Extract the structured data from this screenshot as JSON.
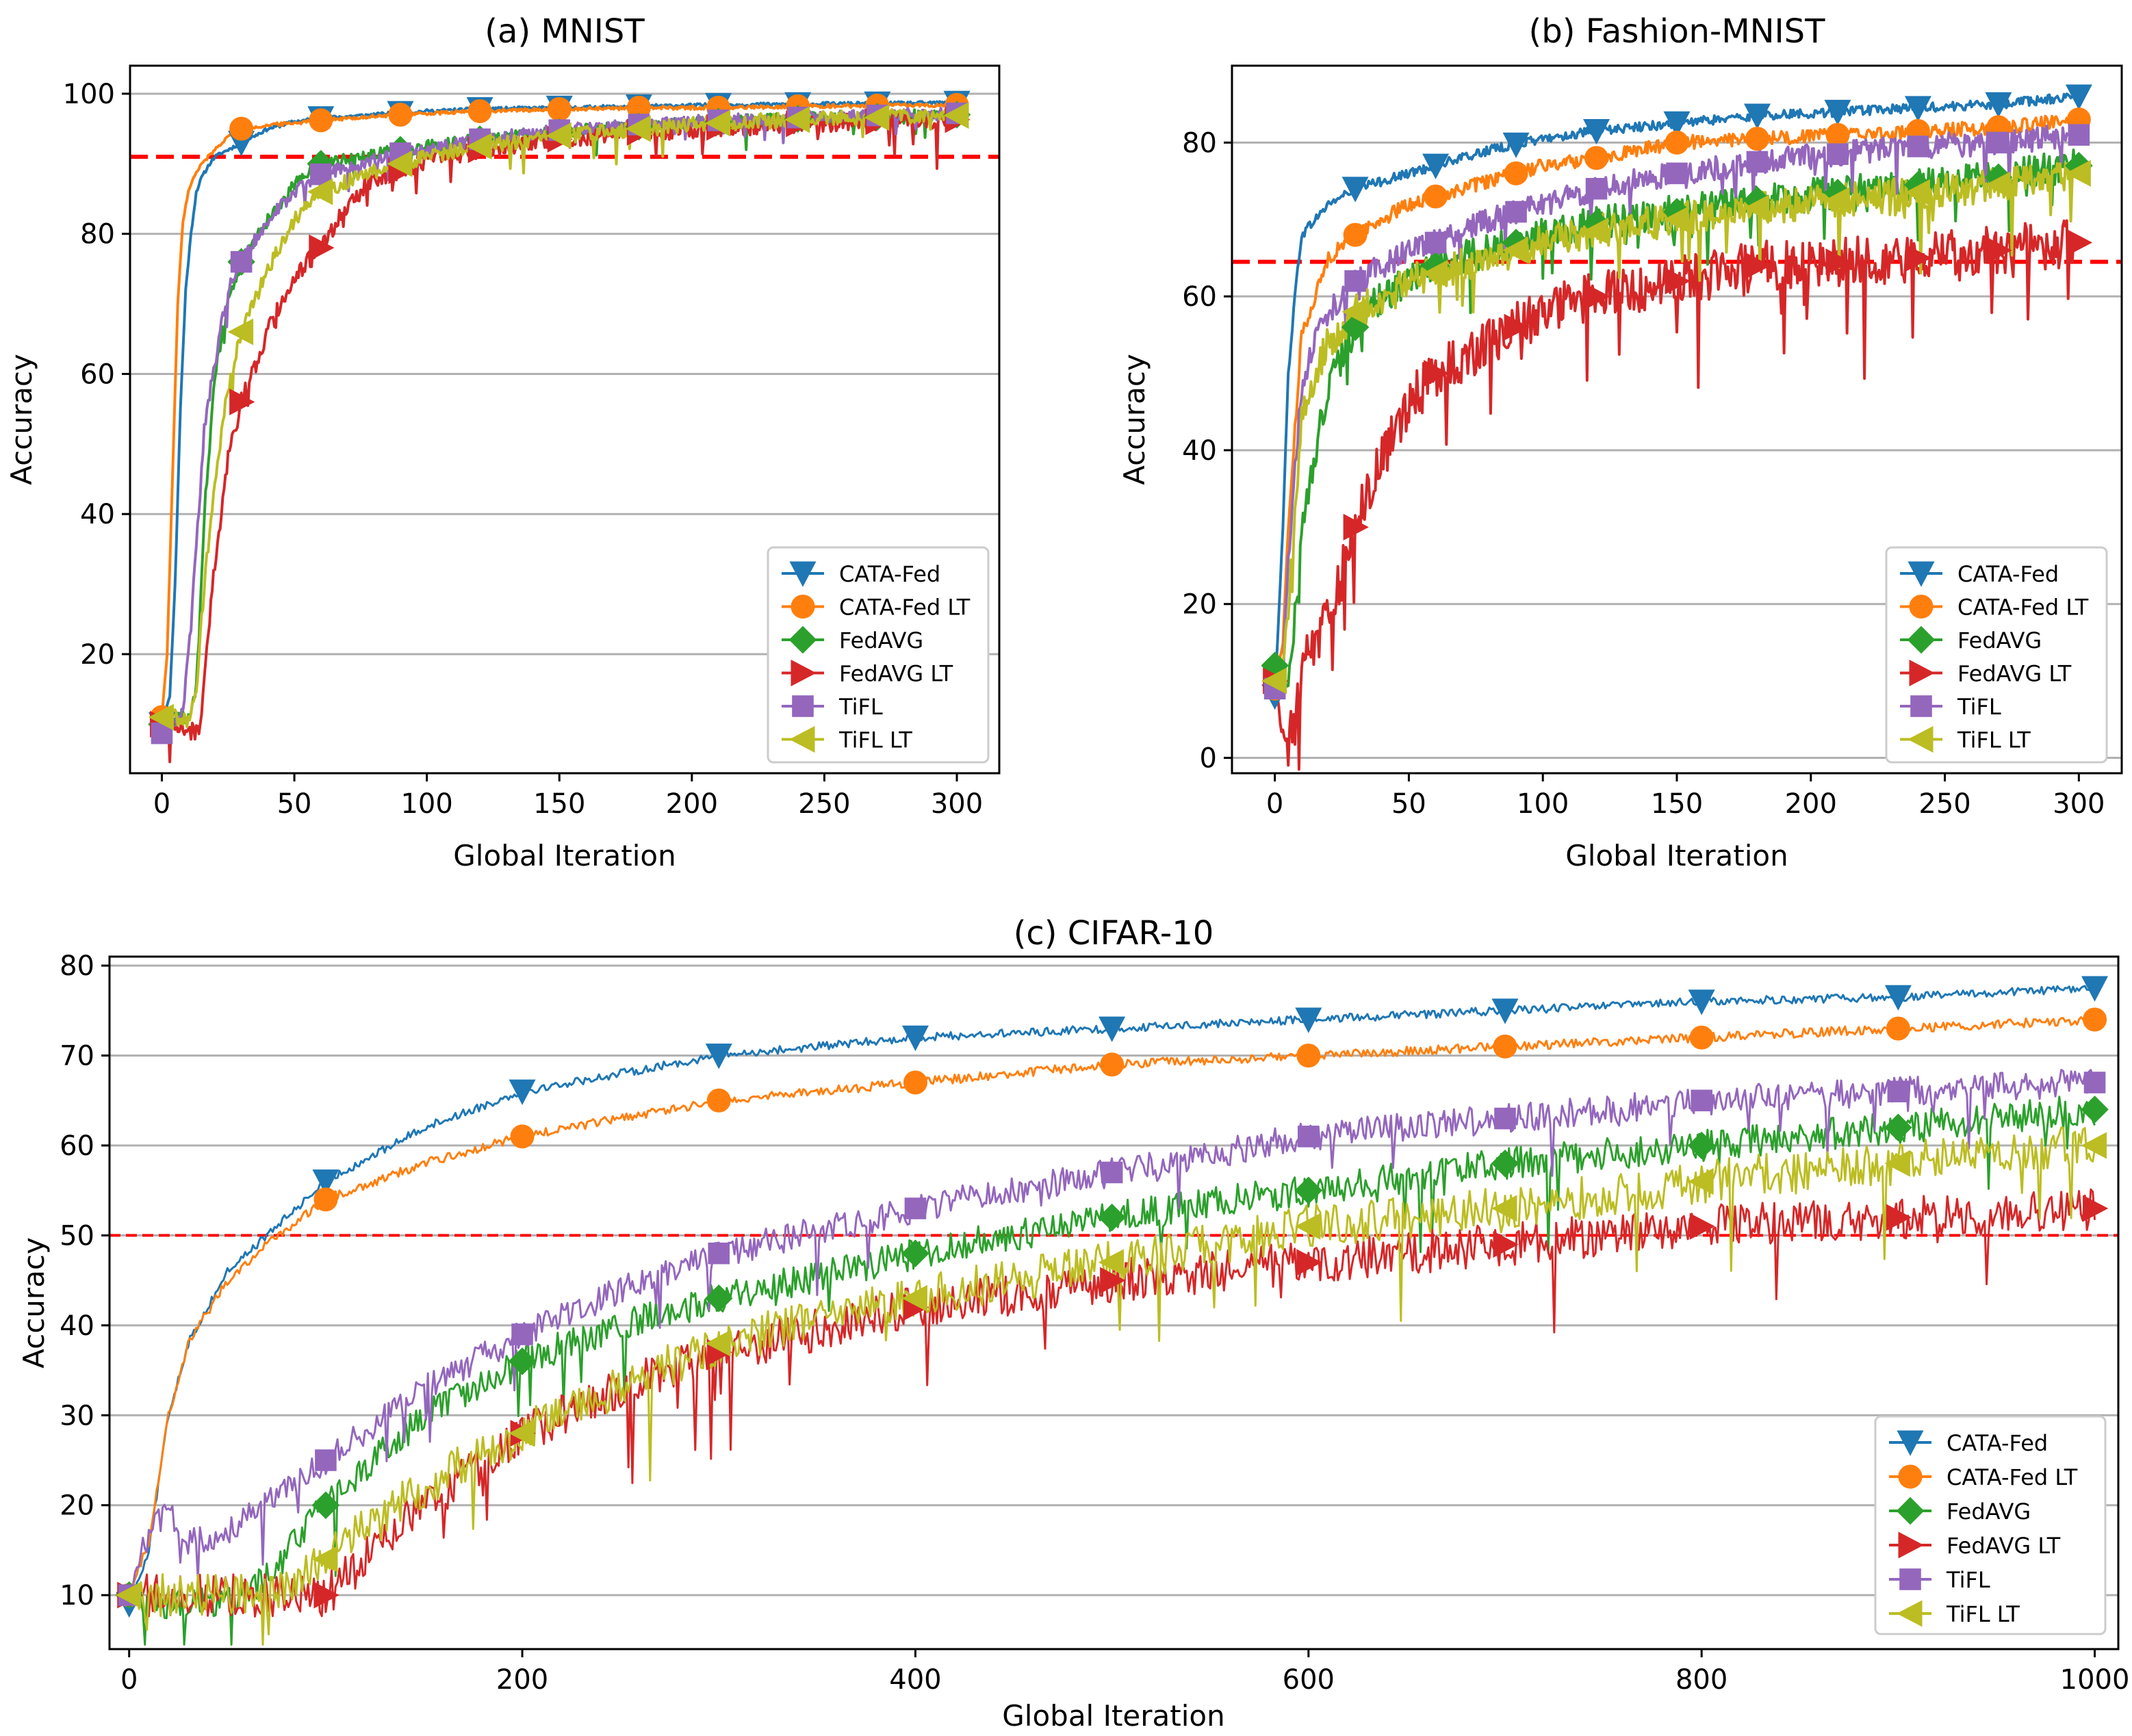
{
  "chart_data": [
    {
      "type": "line",
      "title": "(a) MNIST",
      "xlabel": "Global Iteration",
      "ylabel": "Accuracy",
      "xlim": [
        -12,
        316
      ],
      "ylim": [
        3,
        104
      ],
      "xticks": [
        0,
        50,
        100,
        150,
        200,
        250,
        300
      ],
      "yticks": [
        20,
        40,
        60,
        80,
        100
      ],
      "grid": "horizontal",
      "legend_position": "lower-right",
      "threshold": 91,
      "marker_every": 30,
      "series": [
        {
          "name": "CATA-Fed",
          "marker": "triangle-down",
          "color": "#1f77b4",
          "x": [
            0,
            3,
            5,
            7,
            9,
            11,
            13,
            15,
            18,
            20,
            25,
            30,
            40,
            50,
            60,
            80,
            100,
            120,
            150,
            180,
            210,
            240,
            270,
            300
          ],
          "values": [
            10,
            14,
            30,
            55,
            72,
            80,
            86,
            88,
            90,
            91,
            92,
            93,
            95,
            96,
            96.5,
            97,
            97.5,
            97.8,
            98,
            98.2,
            98.4,
            98.5,
            98.6,
            98.7
          ]
        },
        {
          "name": "CATA-Fed LT",
          "marker": "circle",
          "color": "#ff7f0e",
          "x": [
            0,
            2,
            4,
            6,
            8,
            10,
            12,
            15,
            20,
            25,
            30,
            40,
            60,
            90,
            120,
            150,
            180,
            210,
            240,
            270,
            300
          ],
          "values": [
            11,
            20,
            45,
            70,
            82,
            86,
            88,
            90,
            92,
            94,
            95,
            95.5,
            96.2,
            97,
            97.5,
            97.8,
            98,
            98,
            98.2,
            98.3,
            98.4
          ]
        },
        {
          "name": "FedAVG",
          "marker": "diamond",
          "color": "#2ca02c",
          "x": [
            0,
            5,
            10,
            13,
            16,
            20,
            25,
            30,
            40,
            50,
            60,
            75,
            90,
            120,
            150,
            180,
            210,
            240,
            270,
            300
          ],
          "values": [
            10,
            11,
            11,
            15,
            40,
            60,
            70,
            76,
            82,
            87,
            90,
            91,
            92,
            93.5,
            94.5,
            95.3,
            96,
            96.4,
            96.7,
            97
          ]
        },
        {
          "name": "FedAVG LT",
          "marker": "triangle-right",
          "color": "#d62728",
          "x": [
            0,
            5,
            10,
            14,
            17,
            20,
            25,
            30,
            40,
            50,
            60,
            70,
            80,
            90,
            100,
            120,
            150,
            180,
            210,
            240,
            270,
            300
          ],
          "values": [
            10,
            10,
            9,
            9,
            20,
            33,
            48,
            56,
            66,
            74,
            78,
            84,
            88,
            89,
            90.5,
            92,
            93.5,
            94.5,
            95.2,
            95.7,
            96,
            96.3
          ]
        },
        {
          "name": "TiFL",
          "marker": "square",
          "color": "#9467bd",
          "x": [
            0,
            5,
            8,
            10,
            13,
            16,
            20,
            25,
            30,
            40,
            50,
            60,
            80,
            90,
            120,
            150,
            180,
            210,
            240,
            270,
            300
          ],
          "values": [
            8.7,
            10,
            12,
            20,
            35,
            52,
            62,
            72,
            76,
            82,
            86,
            88.5,
            90.5,
            91.5,
            93.5,
            94.8,
            95.6,
            96.2,
            96.6,
            96.9,
            97.2
          ]
        },
        {
          "name": "TiFL LT",
          "marker": "triangle-left",
          "color": "#bcbd22",
          "x": [
            0,
            5,
            10,
            13,
            16,
            20,
            25,
            30,
            40,
            50,
            60,
            80,
            100,
            120,
            150,
            180,
            210,
            240,
            270,
            300
          ],
          "values": [
            11,
            11,
            10.5,
            14,
            30,
            45,
            58,
            66,
            75,
            82,
            86,
            89,
            91,
            92.5,
            94,
            95,
            95.8,
            96.3,
            96.6,
            96.9
          ]
        }
      ]
    },
    {
      "type": "line",
      "title": "(b) Fashion-MNIST",
      "xlabel": "Global Iteration",
      "ylabel": "Accuracy",
      "xlim": [
        -16,
        316
      ],
      "ylim": [
        -2,
        90
      ],
      "xticks": [
        0,
        50,
        100,
        150,
        200,
        250,
        300
      ],
      "yticks": [
        0,
        20,
        40,
        60,
        80
      ],
      "grid": "horizontal",
      "legend_position": "lower-right",
      "threshold": 64.5,
      "marker_every": 30,
      "series": [
        {
          "name": "CATA-Fed",
          "marker": "triangle-down",
          "color": "#1f77b4",
          "x": [
            0,
            3,
            5,
            8,
            10,
            15,
            20,
            30,
            40,
            50,
            60,
            80,
            100,
            120,
            150,
            180,
            210,
            240,
            270,
            300
          ],
          "values": [
            8,
            30,
            50,
            62,
            68,
            70,
            72,
            74,
            75,
            76,
            77,
            79,
            80.5,
            81.5,
            82.5,
            83.5,
            84,
            84.5,
            85,
            86
          ]
        },
        {
          "name": "CATA-Fed LT",
          "marker": "circle",
          "color": "#ff7f0e",
          "x": [
            0,
            3,
            5,
            8,
            10,
            15,
            20,
            30,
            40,
            50,
            60,
            80,
            100,
            120,
            150,
            180,
            210,
            240,
            270,
            300
          ],
          "values": [
            9,
            15,
            30,
            45,
            55,
            60,
            65,
            68,
            70,
            72,
            73,
            75,
            77,
            78,
            80,
            80.5,
            81,
            81.5,
            82,
            83
          ]
        },
        {
          "name": "FedAVG",
          "marker": "diamond",
          "color": "#2ca02c",
          "x": [
            0,
            3,
            5,
            8,
            10,
            15,
            20,
            30,
            40,
            50,
            60,
            80,
            100,
            120,
            150,
            180,
            210,
            240,
            270,
            300
          ],
          "values": [
            12,
            8,
            10,
            20,
            30,
            40,
            48,
            56,
            60,
            62,
            64,
            66,
            68,
            69.5,
            71,
            72.5,
            73.5,
            74.5,
            75.5,
            77
          ]
        },
        {
          "name": "FedAVG LT",
          "marker": "triangle-right",
          "color": "#d62728",
          "x": [
            0,
            3,
            5,
            8,
            10,
            15,
            20,
            30,
            40,
            50,
            60,
            80,
            100,
            120,
            150,
            180,
            210,
            240,
            270,
            300
          ],
          "values": [
            10,
            3,
            2,
            5,
            12,
            15,
            18,
            30,
            40,
            46,
            50,
            54,
            58,
            60,
            62,
            64,
            64.5,
            65,
            66,
            67
          ]
        },
        {
          "name": "TiFL",
          "marker": "square",
          "color": "#9467bd",
          "x": [
            0,
            3,
            5,
            8,
            10,
            15,
            20,
            30,
            40,
            50,
            60,
            80,
            100,
            120,
            150,
            180,
            210,
            240,
            270,
            300
          ],
          "values": [
            9,
            12,
            25,
            40,
            48,
            55,
            58,
            62,
            64,
            66,
            67,
            70,
            72,
            74,
            76,
            77.5,
            78.5,
            79.5,
            80,
            81
          ]
        },
        {
          "name": "TiFL LT",
          "marker": "triangle-left",
          "color": "#bcbd22",
          "x": [
            0,
            3,
            5,
            8,
            10,
            15,
            20,
            30,
            40,
            50,
            60,
            80,
            100,
            120,
            150,
            180,
            210,
            240,
            270,
            300
          ],
          "values": [
            10,
            12,
            20,
            35,
            44,
            50,
            54,
            58,
            60,
            62,
            63,
            65,
            67,
            68.5,
            70,
            71.5,
            72.5,
            73.5,
            74.5,
            76
          ]
        }
      ]
    },
    {
      "type": "line",
      "title": "(c) CIFAR-10",
      "xlabel": "Global Iteration",
      "ylabel": "Accuracy",
      "xlim": [
        -10,
        1012
      ],
      "ylim": [
        4,
        81
      ],
      "xticks": [
        0,
        200,
        400,
        600,
        800,
        1000
      ],
      "yticks": [
        10,
        20,
        30,
        40,
        50,
        60,
        70,
        80
      ],
      "grid": "horizontal",
      "legend_position": "lower-right",
      "threshold": 50,
      "marker_every": 100,
      "series": [
        {
          "name": "CATA-Fed",
          "marker": "triangle-down",
          "color": "#1f77b4",
          "x": [
            0,
            10,
            20,
            30,
            50,
            70,
            100,
            150,
            200,
            250,
            300,
            400,
            500,
            600,
            700,
            800,
            900,
            1000
          ],
          "values": [
            9,
            15,
            30,
            38,
            46,
            50,
            56,
            62,
            66,
            68,
            70,
            72,
            73,
            74,
            75,
            76,
            76.5,
            77.5
          ]
        },
        {
          "name": "CATA-Fed LT",
          "marker": "circle",
          "color": "#ff7f0e",
          "x": [
            0,
            10,
            20,
            30,
            50,
            70,
            100,
            150,
            200,
            250,
            300,
            400,
            500,
            600,
            700,
            800,
            900,
            1000
          ],
          "values": [
            10,
            16,
            30,
            38,
            45,
            49,
            54,
            58,
            61,
            63,
            65,
            67,
            69,
            70,
            71,
            72,
            73,
            74
          ]
        },
        {
          "name": "FedAVG",
          "marker": "diamond",
          "color": "#2ca02c",
          "x": [
            0,
            20,
            50,
            70,
            100,
            150,
            200,
            250,
            300,
            400,
            500,
            600,
            700,
            800,
            900,
            1000
          ],
          "values": [
            10,
            9,
            9,
            12,
            20,
            30,
            36,
            40,
            43,
            48,
            52,
            55,
            58,
            60,
            62,
            64
          ]
        },
        {
          "name": "FedAVG LT",
          "marker": "triangle-right",
          "color": "#d62728",
          "x": [
            0,
            20,
            50,
            80,
            100,
            150,
            200,
            250,
            300,
            400,
            500,
            600,
            700,
            800,
            900,
            1000
          ],
          "values": [
            10,
            10,
            10,
            10,
            10,
            20,
            28,
            33,
            37,
            42,
            45,
            47,
            49,
            51,
            52,
            53
          ]
        },
        {
          "name": "TiFL",
          "marker": "square",
          "color": "#9467bd",
          "x": [
            0,
            10,
            20,
            30,
            50,
            70,
            100,
            150,
            200,
            250,
            300,
            400,
            500,
            600,
            700,
            800,
            900,
            1000
          ],
          "values": [
            10,
            17,
            19,
            16,
            17,
            20,
            25,
            33,
            39,
            44,
            48,
            53,
            57,
            61,
            63,
            65,
            66,
            67
          ]
        },
        {
          "name": "TiFL LT",
          "marker": "triangle-left",
          "color": "#bcbd22",
          "x": [
            0,
            20,
            50,
            70,
            100,
            150,
            200,
            250,
            300,
            400,
            500,
            600,
            700,
            800,
            900,
            1000
          ],
          "values": [
            10,
            10,
            10,
            10,
            14,
            22,
            28,
            33,
            38,
            43,
            47,
            51,
            53,
            56,
            58,
            60
          ]
        }
      ]
    }
  ]
}
